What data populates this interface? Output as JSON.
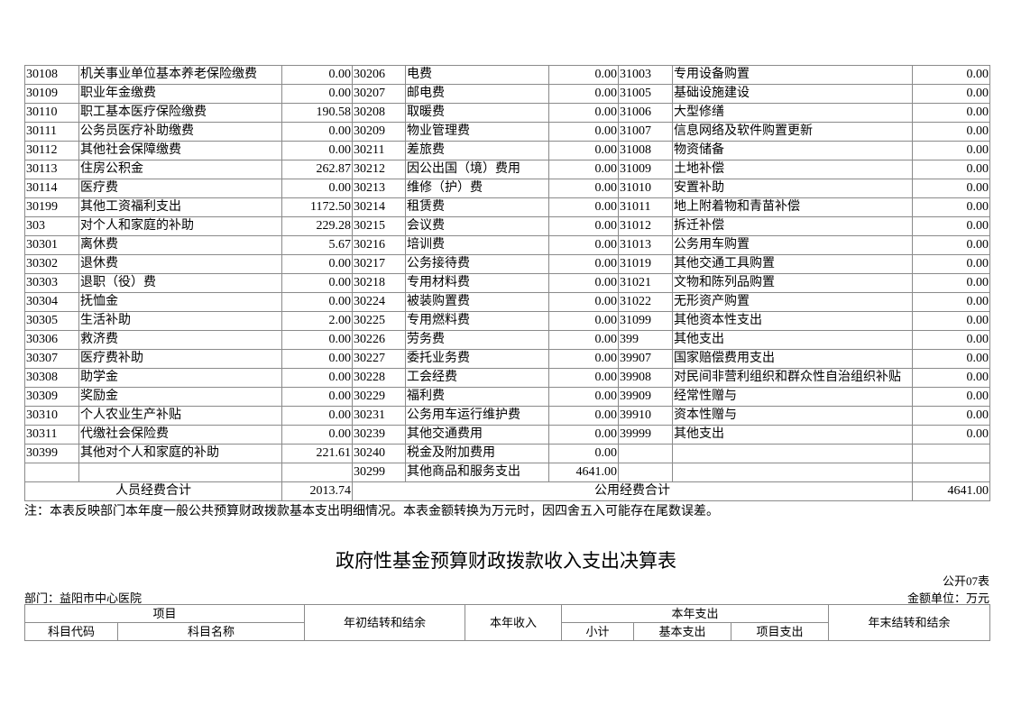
{
  "rows": [
    [
      [
        "30108",
        "机关事业单位基本养老保险缴费",
        "0.00"
      ],
      [
        "30206",
        "电费",
        "0.00"
      ],
      [
        "31003",
        "专用设备购置",
        "0.00"
      ]
    ],
    [
      [
        "30109",
        "职业年金缴费",
        "0.00"
      ],
      [
        "30207",
        "邮电费",
        "0.00"
      ],
      [
        "31005",
        "基础设施建设",
        "0.00"
      ]
    ],
    [
      [
        "30110",
        "职工基本医疗保险缴费",
        "190.58"
      ],
      [
        "30208",
        "取暖费",
        "0.00"
      ],
      [
        "31006",
        "大型修缮",
        "0.00"
      ]
    ],
    [
      [
        "30111",
        "公务员医疗补助缴费",
        "0.00"
      ],
      [
        "30209",
        "物业管理费",
        "0.00"
      ],
      [
        "31007",
        "信息网络及软件购置更新",
        "0.00"
      ]
    ],
    [
      [
        "30112",
        "其他社会保障缴费",
        "0.00"
      ],
      [
        "30211",
        "差旅费",
        "0.00"
      ],
      [
        "31008",
        "物资储备",
        "0.00"
      ]
    ],
    [
      [
        "30113",
        "住房公积金",
        "262.87"
      ],
      [
        "30212",
        "因公出国（境）费用",
        "0.00"
      ],
      [
        "31009",
        "土地补偿",
        "0.00"
      ]
    ],
    [
      [
        "30114",
        "医疗费",
        "0.00"
      ],
      [
        "30213",
        "维修（护）费",
        "0.00"
      ],
      [
        "31010",
        "安置补助",
        "0.00"
      ]
    ],
    [
      [
        "30199",
        "其他工资福利支出",
        "1172.50"
      ],
      [
        "30214",
        "租赁费",
        "0.00"
      ],
      [
        "31011",
        "地上附着物和青苗补偿",
        "0.00"
      ]
    ],
    [
      [
        "303",
        "对个人和家庭的补助",
        "229.28"
      ],
      [
        "30215",
        "会议费",
        "0.00"
      ],
      [
        "31012",
        "拆迁补偿",
        "0.00"
      ]
    ],
    [
      [
        "30301",
        "离休费",
        "5.67"
      ],
      [
        "30216",
        "培训费",
        "0.00"
      ],
      [
        "31013",
        "公务用车购置",
        "0.00"
      ]
    ],
    [
      [
        "30302",
        "退休费",
        "0.00"
      ],
      [
        "30217",
        "公务接待费",
        "0.00"
      ],
      [
        "31019",
        "其他交通工具购置",
        "0.00"
      ]
    ],
    [
      [
        "30303",
        "退职（役）费",
        "0.00"
      ],
      [
        "30218",
        "专用材料费",
        "0.00"
      ],
      [
        "31021",
        "文物和陈列品购置",
        "0.00"
      ]
    ],
    [
      [
        "30304",
        "抚恤金",
        "0.00"
      ],
      [
        "30224",
        "被装购置费",
        "0.00"
      ],
      [
        "31022",
        "无形资产购置",
        "0.00"
      ]
    ],
    [
      [
        "30305",
        "生活补助",
        "2.00"
      ],
      [
        "30225",
        "专用燃料费",
        "0.00"
      ],
      [
        "31099",
        "其他资本性支出",
        "0.00"
      ]
    ],
    [
      [
        "30306",
        "救济费",
        "0.00"
      ],
      [
        "30226",
        "劳务费",
        "0.00"
      ],
      [
        "399",
        "其他支出",
        "0.00"
      ]
    ],
    [
      [
        "30307",
        "医疗费补助",
        "0.00"
      ],
      [
        "30227",
        "委托业务费",
        "0.00"
      ],
      [
        "39907",
        "国家赔偿费用支出",
        "0.00"
      ]
    ],
    [
      [
        "30308",
        "助学金",
        "0.00"
      ],
      [
        "30228",
        "工会经费",
        "0.00"
      ],
      [
        "39908",
        "对民间非营利组织和群众性自治组织补贴",
        "0.00"
      ]
    ],
    [
      [
        "30309",
        "奖励金",
        "0.00"
      ],
      [
        "30229",
        "福利费",
        "0.00"
      ],
      [
        "39909",
        "经常性赠与",
        "0.00"
      ]
    ],
    [
      [
        "30310",
        "个人农业生产补贴",
        "0.00"
      ],
      [
        "30231",
        "公务用车运行维护费",
        "0.00"
      ],
      [
        "39910",
        "资本性赠与",
        "0.00"
      ]
    ],
    [
      [
        "30311",
        "代缴社会保险费",
        "0.00"
      ],
      [
        "30239",
        "其他交通费用",
        "0.00"
      ],
      [
        "39999",
        "其他支出",
        "0.00"
      ]
    ],
    [
      [
        "30399",
        "其他对个人和家庭的补助",
        "221.61"
      ],
      [
        "30240",
        "税金及附加费用",
        "0.00"
      ],
      [
        "",
        "",
        ""
      ]
    ],
    [
      [
        "",
        "",
        ""
      ],
      [
        "30299",
        "其他商品和服务支出",
        "4641.00"
      ],
      [
        "",
        "",
        ""
      ]
    ]
  ],
  "totals": {
    "personnel_label": "人员经费合计",
    "personnel_value": "2013.74",
    "public_label": "公用经费合计",
    "public_value": "4641.00"
  },
  "note": "注：本表反映部门本年度一般公共预算财政拨款基本支出明细情况。本表金额转换为万元时，因四舍五入可能存在尾数误差。",
  "table2": {
    "title": "政府性基金预算财政拨款收入支出决算表",
    "form_no": "公开07表",
    "department": "部门：益阳市中心医院",
    "unit": "金额单位：万元",
    "headers": {
      "item": "项目",
      "code": "科目代码",
      "name": "科目名称",
      "begin_balance": "年初结转和结余",
      "income": "本年收入",
      "expense": "本年支出",
      "subtotal": "小计",
      "basic": "基本支出",
      "project": "项目支出",
      "end_balance": "年末结转和结余"
    }
  }
}
